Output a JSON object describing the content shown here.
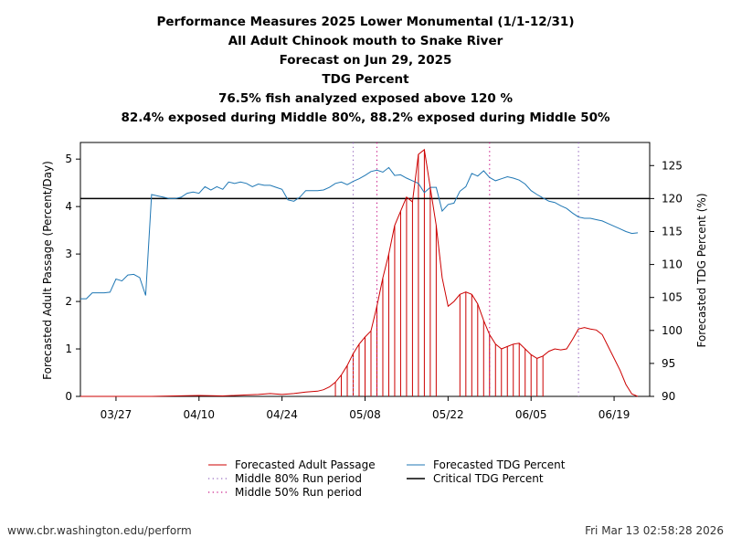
{
  "titles": [
    "Performance Measures 2025 Lower Monumental (1/1-12/31)",
    "All Adult Chinook mouth to Snake River",
    "Forecast on Jun 29, 2025",
    "TDG Percent",
    "76.5% fish analyzed exposed above 120 %",
    "82.4% exposed during Middle 80%, 88.2% exposed during Middle 50%"
  ],
  "footer": {
    "left": "www.cbr.washington.edu/perform",
    "right": "Fri Mar 13 02:58:28 2026"
  },
  "legend": {
    "passage": "Forecasted Adult Passage",
    "m80": "Middle 80% Run period",
    "m50": "Middle 50% Run period",
    "tdg": "Forecasted TDG Percent",
    "crit": "Critical TDG Percent"
  },
  "chart_data": {
    "type": "line",
    "ylabel": "Forecasted Adult Passage (Percent/Day)",
    "y2label": "Forecasted TDG Percent (%)",
    "ylim": [
      0,
      5.35
    ],
    "y2lim": [
      90,
      128.5
    ],
    "yticks": [
      0,
      1,
      2,
      3,
      4,
      5
    ],
    "y2ticks": [
      90,
      95,
      100,
      105,
      110,
      115,
      120,
      125
    ],
    "x_start": "03/21",
    "x_end": "06/26",
    "xtick_labels": [
      "03/27",
      "04/10",
      "04/24",
      "05/08",
      "05/22",
      "06/05",
      "06/19"
    ],
    "xtick_days": [
      6,
      20,
      34,
      48,
      62,
      76,
      90
    ],
    "critical_tdg": 120,
    "middle80": [
      46,
      84
    ],
    "middle50": [
      50,
      69
    ],
    "colors": {
      "passage": "#cc0000",
      "tdg": "#1f77b4",
      "critical": "#000000",
      "m80": "#9467bd",
      "m50": "#c71585"
    },
    "series": [
      {
        "name": "Forecasted Adult Passage",
        "x": [
          0,
          8,
          12,
          16,
          20,
          24,
          28,
          30,
          32,
          34,
          36,
          38,
          39,
          40,
          41,
          42,
          43,
          44,
          45,
          46,
          47,
          48,
          49,
          50,
          51,
          52,
          53,
          54,
          55,
          56,
          57,
          58,
          59,
          60,
          61,
          62,
          63,
          64,
          65,
          66,
          67,
          68,
          69,
          70,
          71,
          72,
          73,
          74,
          75,
          76,
          77,
          78,
          79,
          80,
          81,
          82,
          83,
          84,
          85,
          86,
          87,
          88,
          89,
          90,
          91,
          92,
          93,
          94
        ],
        "y": [
          0.0,
          0.0,
          0.0,
          0.01,
          0.02,
          0.01,
          0.03,
          0.04,
          0.06,
          0.04,
          0.06,
          0.09,
          0.1,
          0.11,
          0.14,
          0.2,
          0.3,
          0.45,
          0.65,
          0.9,
          1.1,
          1.25,
          1.38,
          1.9,
          2.5,
          3.0,
          3.6,
          3.9,
          4.2,
          4.1,
          5.1,
          5.2,
          4.4,
          3.6,
          2.5,
          1.9,
          2.0,
          2.15,
          2.2,
          2.15,
          1.95,
          1.6,
          1.3,
          1.1,
          1.0,
          1.05,
          1.1,
          1.12,
          1.0,
          0.88,
          0.8,
          0.85,
          0.95,
          1.0,
          0.98,
          1.0,
          1.2,
          1.42,
          1.45,
          1.42,
          1.4,
          1.3,
          1.05,
          0.8,
          0.55,
          0.25,
          0.05,
          0.0
        ]
      },
      {
        "name": "Forecasted TDG Percent",
        "x": [
          0,
          1,
          2,
          3,
          4,
          5,
          6,
          7,
          8,
          9,
          10,
          11,
          12,
          13,
          14,
          15,
          16,
          17,
          18,
          19,
          20,
          21,
          22,
          23,
          24,
          25,
          26,
          27,
          28,
          29,
          30,
          31,
          32,
          33,
          34,
          35,
          36,
          37,
          38,
          39,
          40,
          41,
          42,
          43,
          44,
          45,
          46,
          47,
          48,
          49,
          50,
          51,
          52,
          53,
          54,
          55,
          56,
          57,
          58,
          59,
          60,
          61,
          62,
          63,
          64,
          65,
          66,
          67,
          68,
          69,
          70,
          71,
          72,
          73,
          74,
          75,
          76,
          77,
          78,
          79,
          80,
          81,
          82,
          83,
          84,
          85,
          86,
          87,
          88,
          89,
          90,
          91,
          92,
          93,
          94
        ],
        "y": [
          104.8,
          104.8,
          105.7,
          105.7,
          105.7,
          105.8,
          107.8,
          107.5,
          108.4,
          108.5,
          108.0,
          105.3,
          120.6,
          120.4,
          120.2,
          120.0,
          120.0,
          120.2,
          120.8,
          121.0,
          120.8,
          121.8,
          121.3,
          121.8,
          121.4,
          122.5,
          122.3,
          122.5,
          122.3,
          121.8,
          122.2,
          122.0,
          122.0,
          121.7,
          121.4,
          119.8,
          119.6,
          120.2,
          121.2,
          121.2,
          121.2,
          121.3,
          121.7,
          122.3,
          122.5,
          122.1,
          122.6,
          123.0,
          123.5,
          124.1,
          124.3,
          124.0,
          124.7,
          123.5,
          123.6,
          123.1,
          122.7,
          122.3,
          120.9,
          121.7,
          121.7,
          118.1,
          119.1,
          119.3,
          121.1,
          121.8,
          123.8,
          123.4,
          124.2,
          123.2,
          122.7,
          123.0,
          123.3,
          123.1,
          122.8,
          122.2,
          121.2,
          120.6,
          120.1,
          119.6,
          119.4,
          118.9,
          118.5,
          117.8,
          117.2,
          117.0,
          117.0,
          116.8,
          116.6,
          116.2,
          115.8,
          115.4,
          115.0,
          114.7,
          114.8
        ]
      }
    ]
  }
}
